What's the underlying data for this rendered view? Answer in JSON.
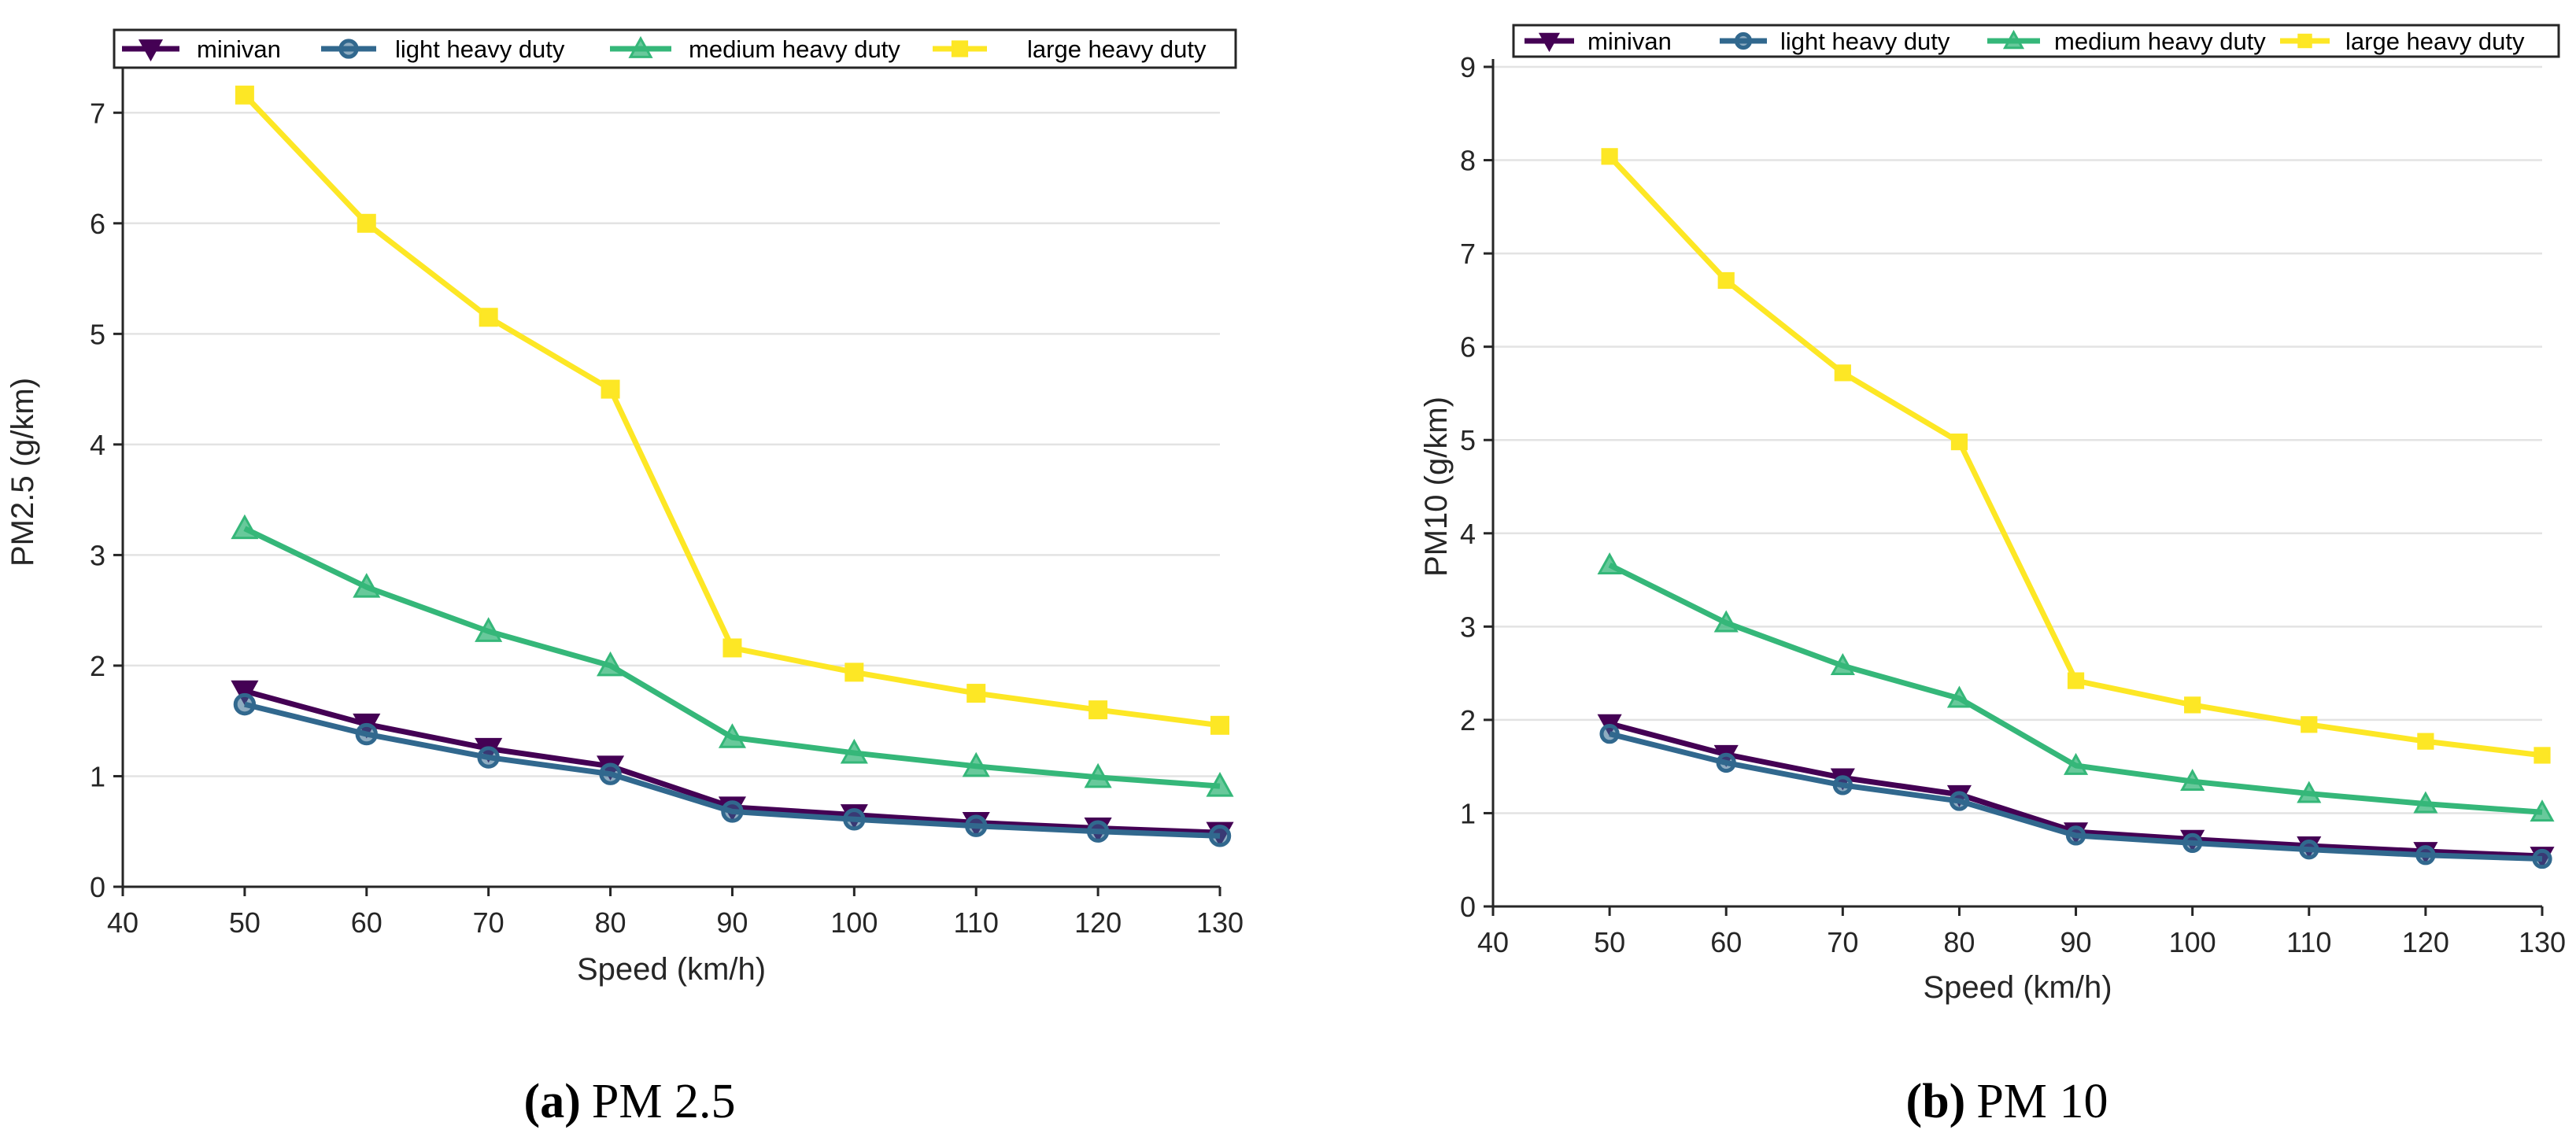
{
  "chart_data": [
    {
      "type": "line",
      "caption_letter": "(a)",
      "caption_text": "PM 2.5",
      "xlabel": "Speed (km/h)",
      "ylabel": "PM2.5 (g/km)",
      "xlim": [
        40,
        130
      ],
      "ylim": [
        0,
        7.5
      ],
      "xticks": [
        40,
        50,
        60,
        70,
        80,
        90,
        100,
        110,
        120,
        130
      ],
      "yticks": [
        0,
        1,
        2,
        3,
        4,
        5,
        6,
        7
      ],
      "grid": "horizontal",
      "legend_position": "top",
      "x": [
        50,
        60,
        70,
        80,
        90,
        100,
        110,
        120,
        130
      ],
      "series": [
        {
          "name": "minivan",
          "color": "#440154",
          "marker": "triangle-down",
          "values": [
            1.77,
            1.47,
            1.25,
            1.09,
            0.72,
            0.65,
            0.58,
            0.53,
            0.49
          ]
        },
        {
          "name": "light heavy duty",
          "color": "#31688e",
          "marker": "circle",
          "values": [
            1.65,
            1.38,
            1.17,
            1.02,
            0.68,
            0.61,
            0.55,
            0.5,
            0.46
          ]
        },
        {
          "name": "medium heavy duty",
          "color": "#35b779",
          "marker": "triangle-up",
          "values": [
            3.24,
            2.71,
            2.31,
            2.0,
            1.35,
            1.21,
            1.09,
            0.99,
            0.91
          ]
        },
        {
          "name": "large heavy duty",
          "color": "#fde725",
          "marker": "square",
          "values": [
            7.16,
            6.0,
            5.15,
            4.5,
            2.16,
            1.94,
            1.75,
            1.6,
            1.46
          ]
        }
      ]
    },
    {
      "type": "line",
      "caption_letter": "(b)",
      "caption_text": "PM 10",
      "xlabel": "Speed (km/h)",
      "ylabel": "PM10 (g/km)",
      "xlim": [
        40,
        130
      ],
      "ylim": [
        0,
        9
      ],
      "xticks": [
        40,
        50,
        60,
        70,
        80,
        90,
        100,
        110,
        120,
        130
      ],
      "yticks": [
        0,
        1,
        2,
        3,
        4,
        5,
        6,
        7,
        8,
        9
      ],
      "grid": "horizontal",
      "legend_position": "top",
      "x": [
        50,
        60,
        70,
        80,
        90,
        100,
        110,
        120,
        130
      ],
      "series": [
        {
          "name": "minivan",
          "color": "#440154",
          "marker": "triangle-down",
          "values": [
            1.96,
            1.63,
            1.38,
            1.2,
            0.8,
            0.72,
            0.65,
            0.59,
            0.54
          ]
        },
        {
          "name": "light heavy duty",
          "color": "#31688e",
          "marker": "circle",
          "values": [
            1.85,
            1.54,
            1.3,
            1.13,
            0.76,
            0.68,
            0.61,
            0.55,
            0.51
          ]
        },
        {
          "name": "medium heavy duty",
          "color": "#35b779",
          "marker": "triangle-up",
          "values": [
            3.66,
            3.04,
            2.58,
            2.23,
            1.51,
            1.34,
            1.21,
            1.1,
            1.01
          ]
        },
        {
          "name": "large heavy duty",
          "color": "#fde725",
          "marker": "square",
          "values": [
            8.04,
            6.71,
            5.72,
            4.98,
            2.42,
            2.16,
            1.95,
            1.77,
            1.62
          ]
        }
      ]
    }
  ]
}
